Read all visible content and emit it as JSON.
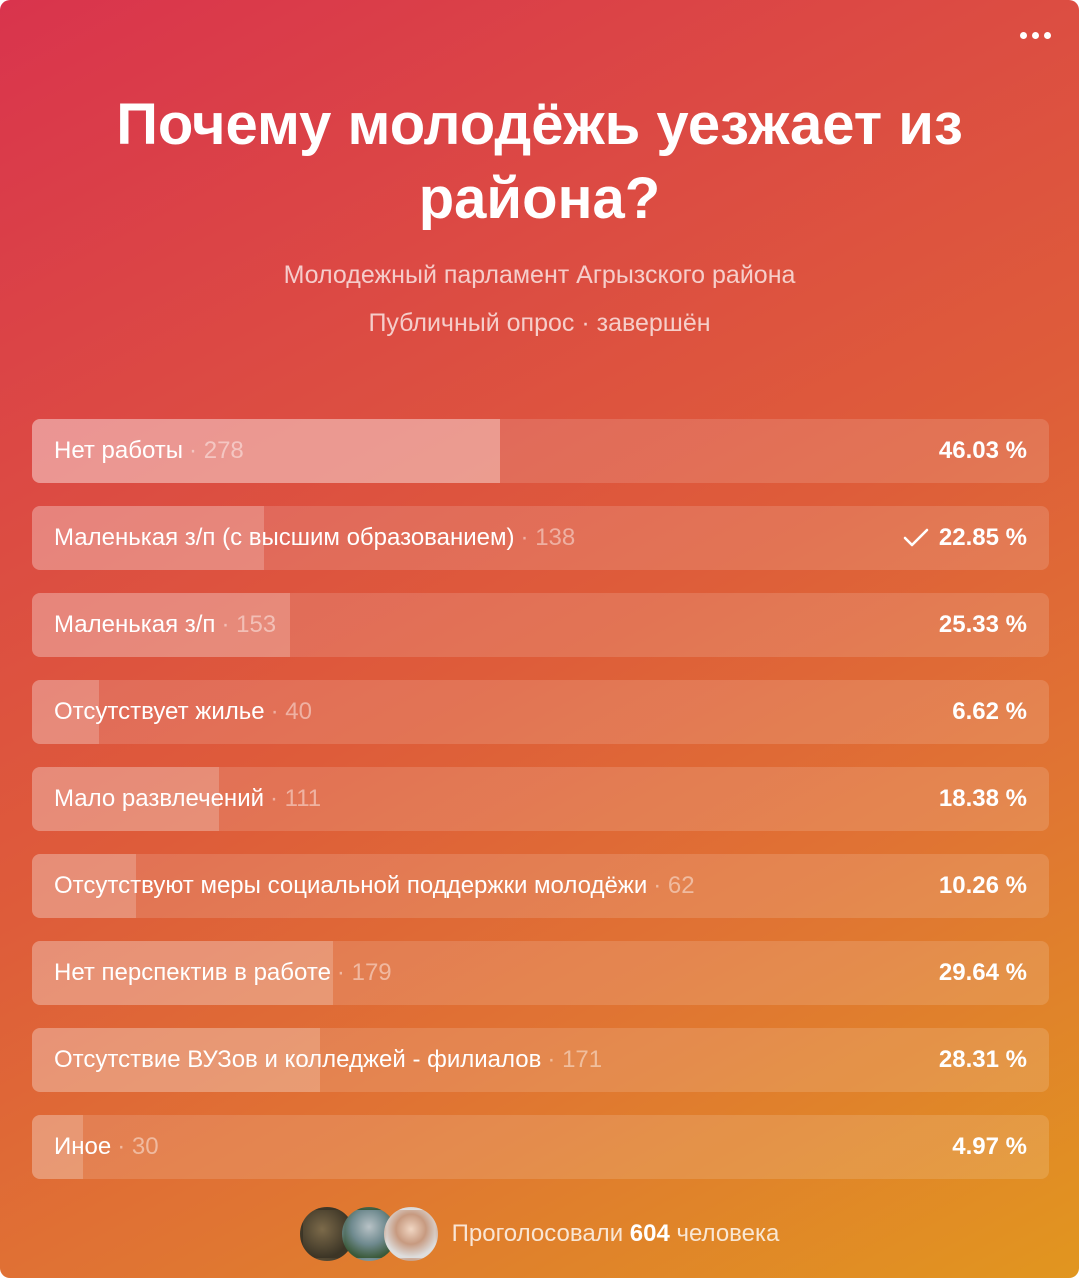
{
  "poll": {
    "title": "Почему молодёжь уезжает из района?",
    "author": "Молодежный парламент Агрызского района",
    "status": "Публичный опрос · завершён",
    "options": [
      {
        "label": "Нет работы",
        "count": "278",
        "percent": "46.03 %",
        "fraction": 0.4603,
        "selected": false,
        "leading": true
      },
      {
        "label": "Маленькая з/п (с высшим образованием)",
        "count": "138",
        "percent": "22.85 %",
        "fraction": 0.2285,
        "selected": true,
        "leading": false
      },
      {
        "label": "Маленькая з/п",
        "count": "153",
        "percent": "25.33 %",
        "fraction": 0.2533,
        "selected": false,
        "leading": false
      },
      {
        "label": "Отсутствует жилье",
        "count": "40",
        "percent": "6.62 %",
        "fraction": 0.0662,
        "selected": false,
        "leading": false
      },
      {
        "label": "Мало развлечений",
        "count": "111",
        "percent": "18.38 %",
        "fraction": 0.1838,
        "selected": false,
        "leading": false
      },
      {
        "label": "Отсутствуют меры социальной поддержки молодёжи",
        "count": "62",
        "percent": "10.26 %",
        "fraction": 0.1026,
        "selected": false,
        "leading": false
      },
      {
        "label": "Нет перспектив в работе",
        "count": "179",
        "percent": "29.64 %",
        "fraction": 0.2964,
        "selected": false,
        "leading": false
      },
      {
        "label": "Отсутствие ВУЗов и колледжей - филиалов",
        "count": "171",
        "percent": "28.31 %",
        "fraction": 0.2831,
        "selected": false,
        "leading": false
      },
      {
        "label": "Иное",
        "count": "30",
        "percent": "4.97 %",
        "fraction": 0.0497,
        "selected": false,
        "leading": false
      }
    ],
    "footer": {
      "prefix": "Проголосовали",
      "total": "604",
      "suffix": "человека"
    }
  },
  "icons": {
    "menu": "more-horizontal-icon",
    "selected": "checkmark-icon"
  },
  "colors": {
    "gradient_start": "#d9344d",
    "gradient_end": "#e1961f"
  }
}
